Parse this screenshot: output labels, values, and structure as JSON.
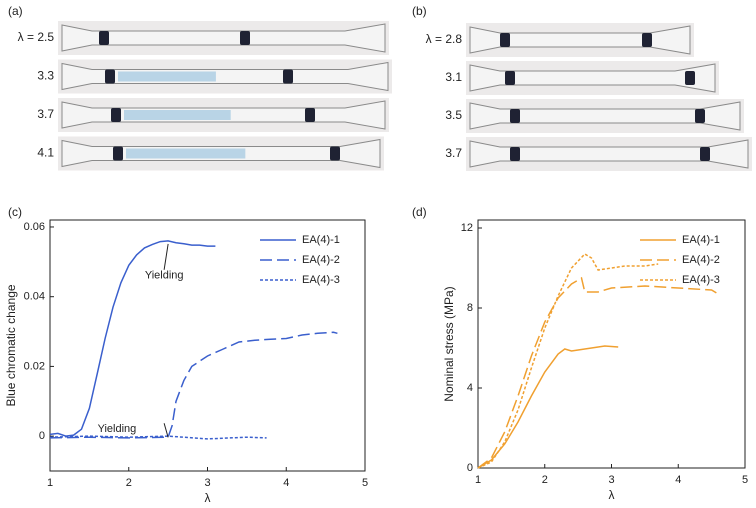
{
  "panels": [
    {
      "label": "(a)",
      "strips": [
        "λ = 2.5",
        "3.3",
        "3.7",
        "4.1"
      ]
    },
    {
      "label": "(b)",
      "strips": [
        "λ = 2.8",
        "3.1",
        "3.5",
        "3.7"
      ]
    }
  ],
  "chart_data": [
    {
      "type": "line",
      "panel": "(c)",
      "xlabel": "λ",
      "ylabel": "Blue chromatic change",
      "xlim": [
        1,
        5
      ],
      "xticks": [
        1,
        2,
        3,
        4,
        5
      ],
      "ylim": [
        -0.01,
        0.062
      ],
      "yticks": [
        0,
        0.02,
        0.04,
        0.06
      ],
      "legend": "upper right",
      "annotations": [
        "Yielding",
        "Yielding"
      ],
      "series": [
        {
          "name": "EA(4)-1",
          "color": "#3a5fcd",
          "linestyle": "solid",
          "x": [
            1,
            1.1,
            1.2,
            1.3,
            1.4,
            1.5,
            1.6,
            1.7,
            1.8,
            1.9,
            2.0,
            2.1,
            2.2,
            2.3,
            2.4,
            2.5,
            2.6,
            2.7,
            2.8,
            2.9,
            3.0,
            3.1
          ],
          "values": [
            0.0005,
            0.0008,
            0,
            0.0003,
            0.002,
            0.008,
            0.018,
            0.028,
            0.037,
            0.044,
            0.049,
            0.052,
            0.054,
            0.055,
            0.0558,
            0.056,
            0.0555,
            0.0552,
            0.0548,
            0.0548,
            0.0545,
            0.0545
          ]
        },
        {
          "name": "EA(4)-2",
          "color": "#3a5fcd",
          "linestyle": "dashed",
          "x": [
            1,
            1.5,
            2.0,
            2.5,
            2.55,
            2.6,
            2.7,
            2.8,
            3.0,
            3.2,
            3.4,
            3.6,
            3.8,
            4.0,
            4.2,
            4.4,
            4.6,
            4.65
          ],
          "values": [
            -0.0005,
            -0.0003,
            -0.0005,
            -0.0003,
            0.003,
            0.01,
            0.016,
            0.02,
            0.023,
            0.025,
            0.027,
            0.0275,
            0.0278,
            0.028,
            0.029,
            0.0295,
            0.0298,
            0.0295
          ]
        },
        {
          "name": "EA(4)-3",
          "color": "#3a5fcd",
          "linestyle": "dotted",
          "x": [
            1,
            1.5,
            2,
            2.5,
            3,
            3.5,
            3.75
          ],
          "values": [
            -0.0003,
            0,
            -0.0003,
            0,
            -0.0008,
            -0.0003,
            -0.0005
          ]
        }
      ]
    },
    {
      "type": "line",
      "panel": "(d)",
      "xlabel": "λ",
      "ylabel": "Nominal stress (MPa)",
      "xlim": [
        1,
        5
      ],
      "xticks": [
        1,
        2,
        3,
        4,
        5
      ],
      "ylim": [
        0,
        12.4
      ],
      "yticks": [
        0,
        4,
        8,
        12
      ],
      "legend": "upper right",
      "series": [
        {
          "name": "EA(4)-1",
          "color": "#f0a030",
          "linestyle": "solid",
          "x": [
            1,
            1.2,
            1.4,
            1.6,
            1.8,
            2.0,
            2.2,
            2.3,
            2.4,
            2.5,
            2.7,
            2.9,
            3.1
          ],
          "values": [
            0,
            0.4,
            1.2,
            2.3,
            3.6,
            4.8,
            5.7,
            5.95,
            5.85,
            5.9,
            6.0,
            6.1,
            6.05
          ]
        },
        {
          "name": "EA(4)-2",
          "color": "#f0a030",
          "linestyle": "dashed",
          "x": [
            1,
            1.2,
            1.4,
            1.6,
            1.8,
            2.0,
            2.2,
            2.4,
            2.55,
            2.6,
            2.8,
            3.0,
            3.5,
            4.0,
            4.5,
            4.6
          ],
          "values": [
            0,
            0.5,
            1.8,
            3.6,
            5.6,
            7.3,
            8.5,
            9.2,
            9.5,
            8.8,
            8.8,
            9.0,
            9.1,
            9.0,
            8.9,
            8.7
          ]
        },
        {
          "name": "EA(4)-3",
          "color": "#f0a030",
          "linestyle": "dotted",
          "x": [
            1,
            1.2,
            1.4,
            1.6,
            1.8,
            2.0,
            2.2,
            2.4,
            2.6,
            2.7,
            2.8,
            3.0,
            3.2,
            3.5,
            3.7
          ],
          "values": [
            0,
            0.3,
            1.3,
            2.9,
            5.0,
            7.0,
            8.6,
            10.0,
            10.7,
            10.5,
            9.9,
            10.0,
            10.1,
            10.1,
            10.2
          ]
        }
      ]
    }
  ]
}
